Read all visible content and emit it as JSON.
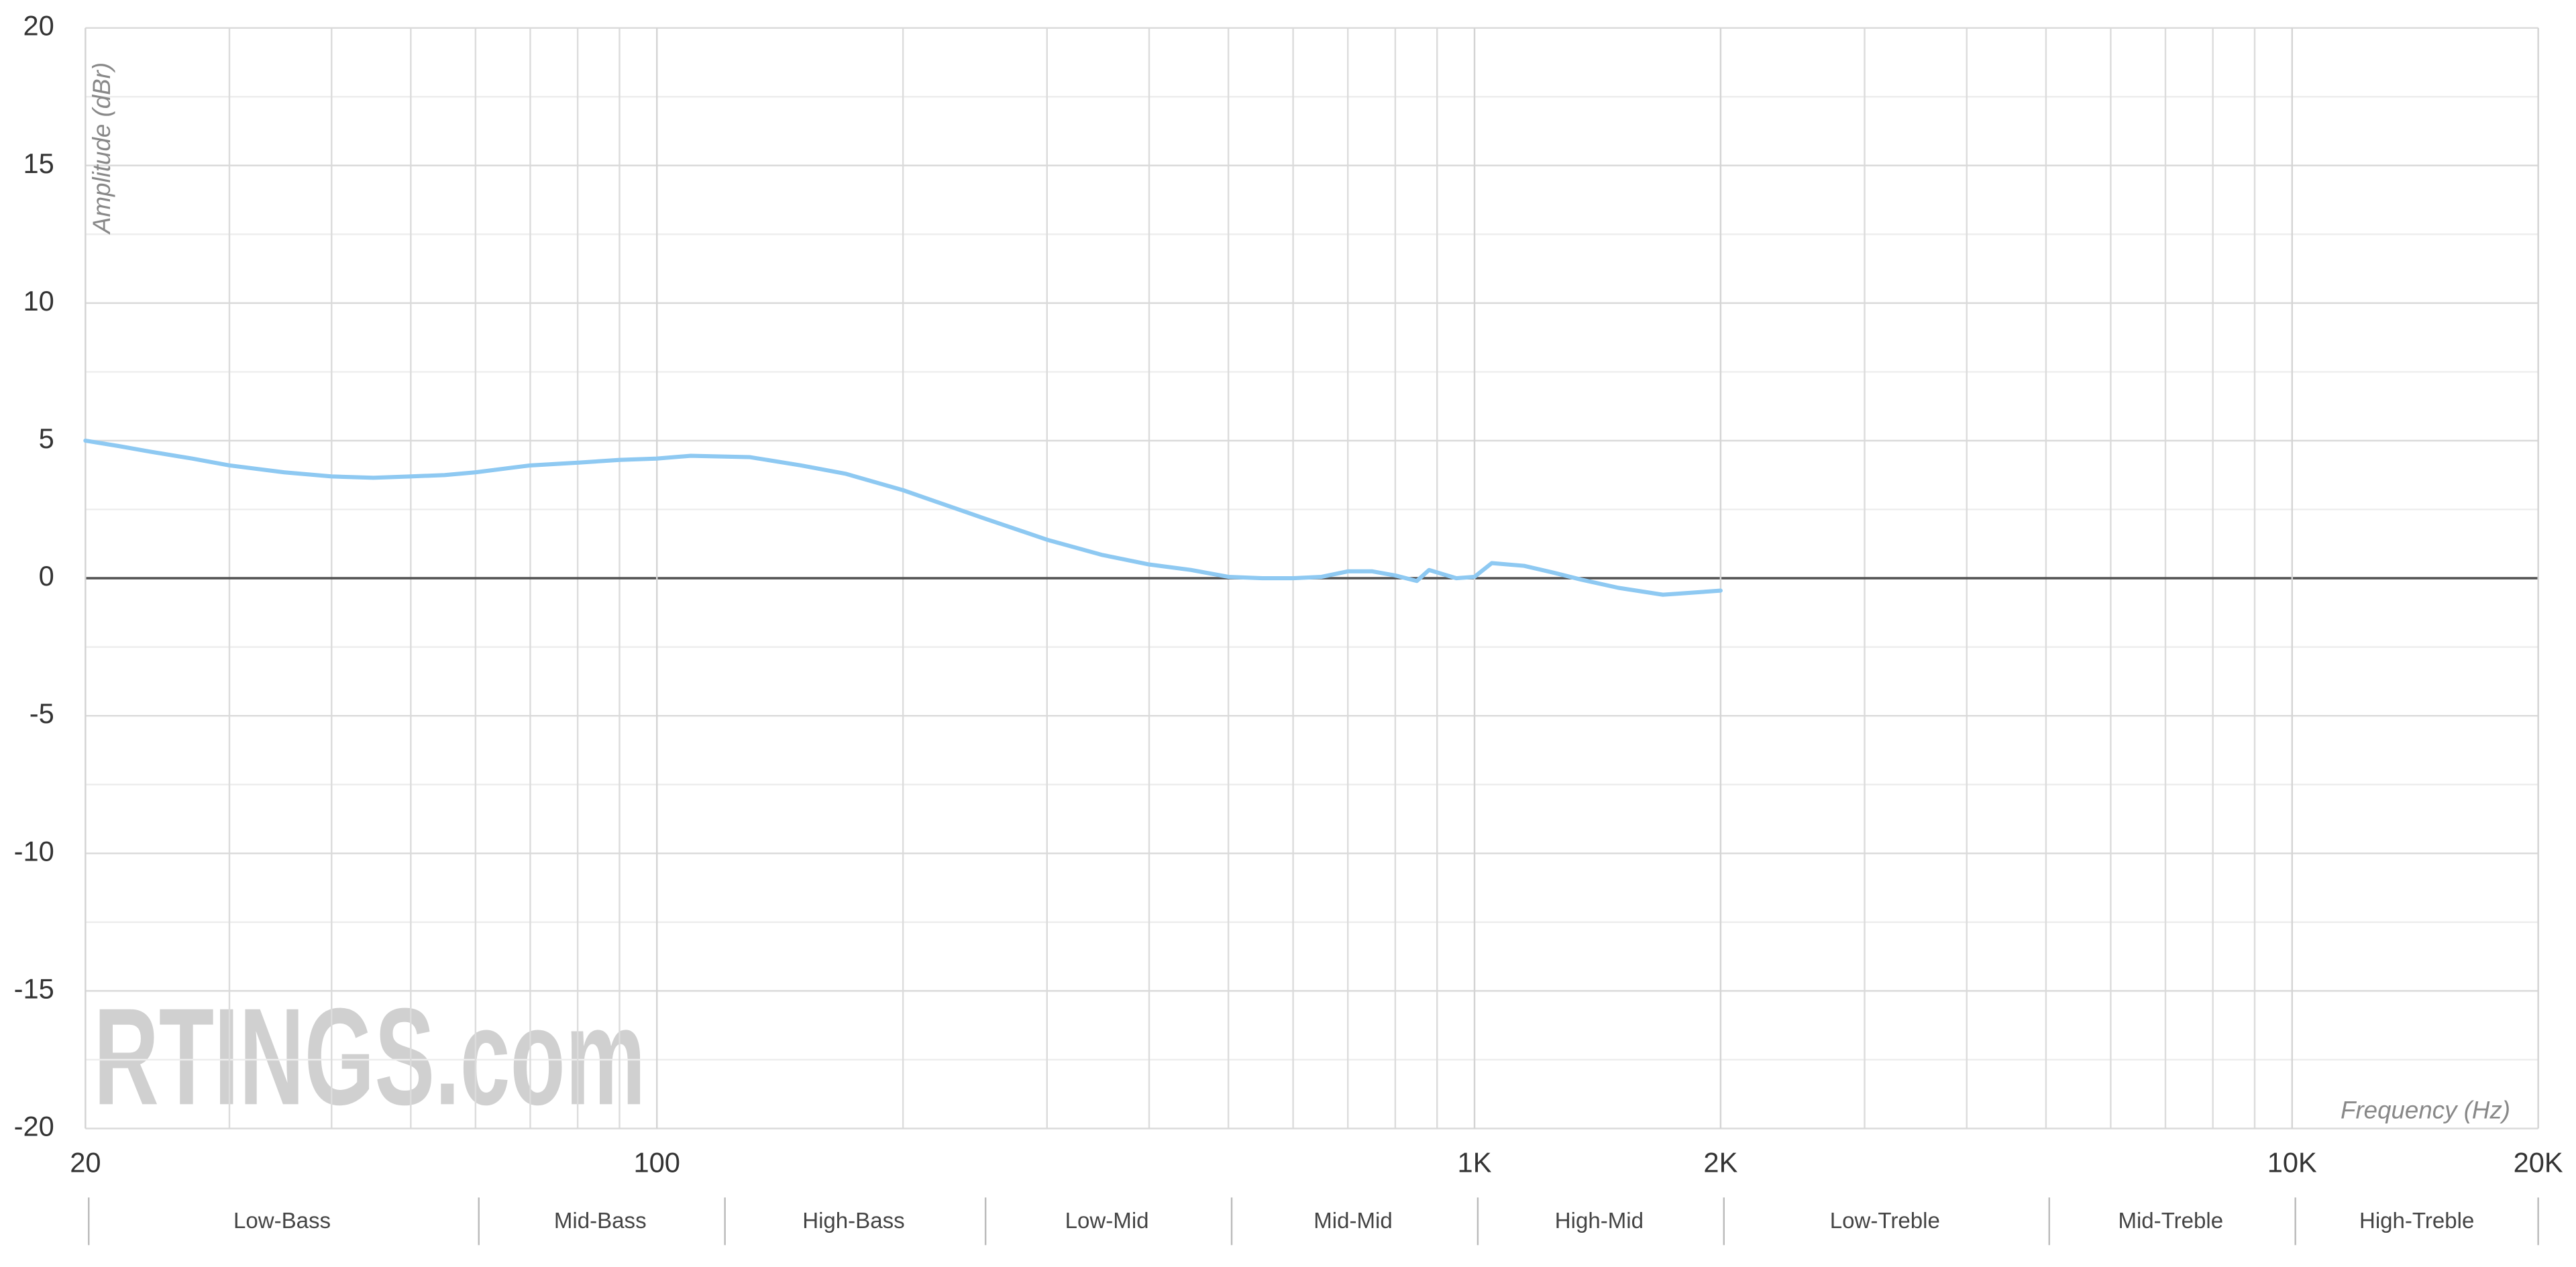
{
  "chart_data": {
    "type": "line",
    "y_label": "Amplitude (dBr)",
    "x_label": "Frequency (Hz)",
    "watermark": "RTINGS.com",
    "x_scale": "log",
    "grid": true,
    "xlim": [
      20,
      20000
    ],
    "ylim": [
      -20,
      20
    ],
    "xticks": [
      20,
      100,
      {
        "value": 1000,
        "label": "1K"
      },
      {
        "value": 2000,
        "label": "2K"
      },
      {
        "value": 10000,
        "label": "10K"
      },
      {
        "value": 20000,
        "label": "20K"
      }
    ],
    "xminorticks": [
      30,
      40,
      50,
      60,
      70,
      80,
      90,
      200,
      300,
      400,
      500,
      600,
      700,
      800,
      900,
      3000,
      4000,
      5000,
      6000,
      7000,
      8000,
      9000
    ],
    "yticks": [
      20,
      15,
      10,
      5,
      0,
      -5,
      -10,
      -15,
      -20
    ],
    "yminorticks": [
      17.5,
      12.5,
      7.5,
      2.5,
      -2.5,
      -7.5,
      -12.5,
      -17.5
    ],
    "bands": [
      {
        "label": "Low-Bass",
        "from": 20,
        "to": 60
      },
      {
        "label": "Mid-Bass",
        "from": 60,
        "to": 120
      },
      {
        "label": "High-Bass",
        "from": 120,
        "to": 250
      },
      {
        "label": "Low-Mid",
        "from": 250,
        "to": 500
      },
      {
        "label": "Mid-Mid",
        "from": 500,
        "to": 1000
      },
      {
        "label": "High-Mid",
        "from": 1000,
        "to": 2000
      },
      {
        "label": "Low-Treble",
        "from": 2000,
        "to": 5000
      },
      {
        "label": "Mid-Treble",
        "from": 5000,
        "to": 10000
      },
      {
        "label": "High-Treble",
        "from": 10000,
        "to": 20000
      }
    ],
    "x": [
      20,
      22,
      24,
      27,
      30,
      35,
      40,
      45,
      50,
      55,
      60,
      70,
      80,
      90,
      100,
      110,
      130,
      150,
      170,
      200,
      250,
      300,
      350,
      400,
      450,
      500,
      550,
      600,
      650,
      700,
      750,
      800,
      850,
      880,
      950,
      1000,
      1050,
      1150,
      1250,
      1350,
      1500,
      1700,
      2000
    ],
    "series": [
      {
        "color": "#8ec9f2",
        "values": [
          5.0,
          4.8,
          4.6,
          4.35,
          4.1,
          3.85,
          3.7,
          3.65,
          3.7,
          3.75,
          3.85,
          4.1,
          4.2,
          4.3,
          4.35,
          4.45,
          4.4,
          4.1,
          3.8,
          3.2,
          2.2,
          1.4,
          0.85,
          0.5,
          0.3,
          0.05,
          0,
          0,
          0.05,
          0.25,
          0.25,
          0.1,
          -0.1,
          0.3,
          0.0,
          0.05,
          0.55,
          0.45,
          0.2,
          -0.05,
          -0.35,
          -0.6,
          -0.45
        ]
      }
    ]
  }
}
